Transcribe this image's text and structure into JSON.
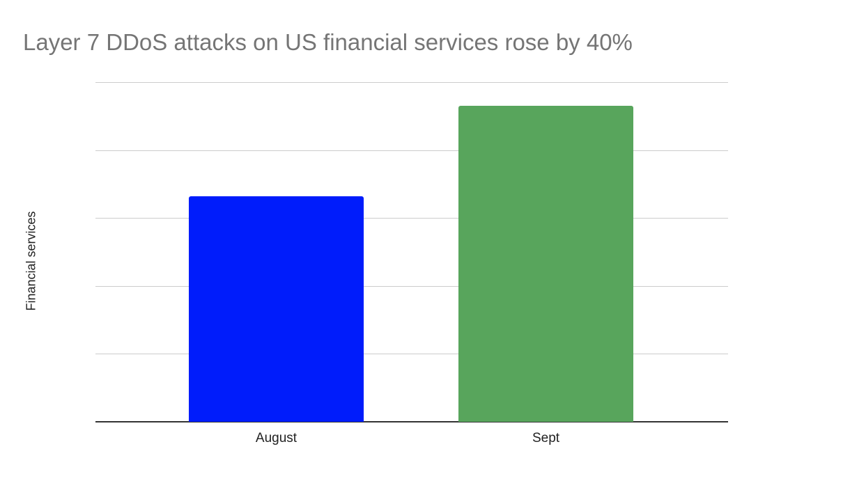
{
  "chart_data": {
    "type": "bar",
    "title": "Layer 7 DDoS attacks on US financial services rose by 40%",
    "xlabel": "",
    "ylabel": "Financial services",
    "categories": [
      "August",
      "Sept"
    ],
    "values": [
      3.32,
      4.65
    ],
    "colors": [
      "#001cfb",
      "#58a55c"
    ],
    "ylim": [
      0,
      5
    ],
    "yticks_shown": false,
    "gridlines": 5,
    "grid": true,
    "legend": null,
    "note": "Y-axis has no tick labels; values are normalized (Sept ≈ 1.4 × August, consistent with the 40% rise)."
  }
}
